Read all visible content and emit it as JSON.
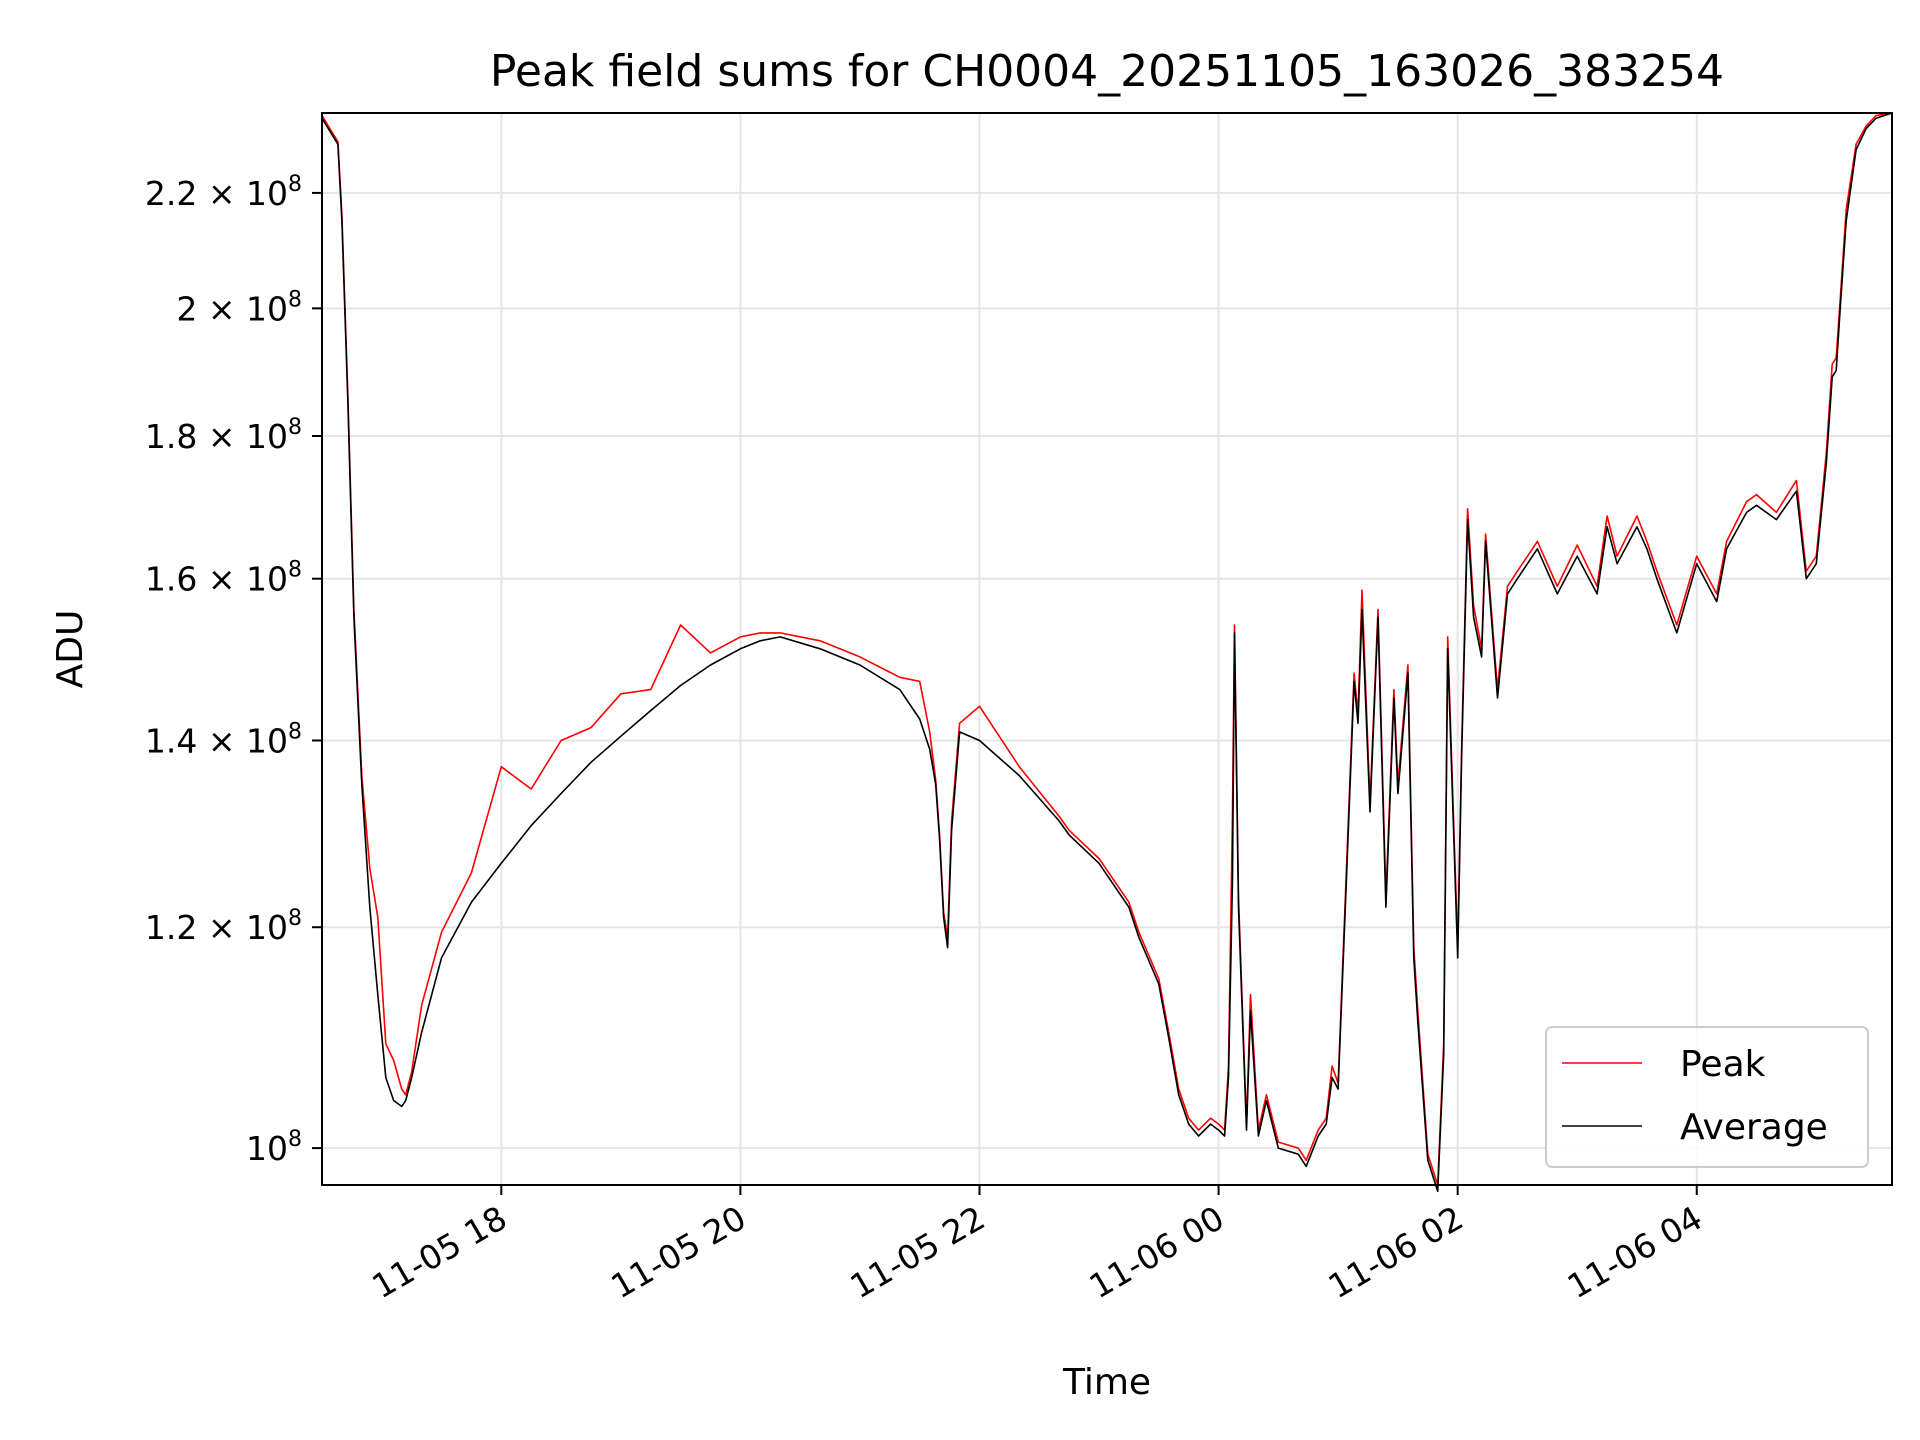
{
  "chart_data": {
    "type": "line",
    "title": "Peak field sums for CH0004_20251105_163026_383254",
    "xlabel": "Time",
    "ylabel": "ADU",
    "y_scale": "log",
    "ylim": [
      97000000,
      235000000
    ],
    "xlim": [
      "2025-11-05 16:30",
      "2025-11-06 05:38"
    ],
    "grid": true,
    "legend_position": "lower-right",
    "x_ticks": [
      {
        "value": "2025-11-05 18:00",
        "label": "11-05 18"
      },
      {
        "value": "2025-11-05 20:00",
        "label": "11-05 20"
      },
      {
        "value": "2025-11-05 22:00",
        "label": "11-05 22"
      },
      {
        "value": "2025-11-06 00:00",
        "label": "11-06 00"
      },
      {
        "value": "2025-11-06 02:00",
        "label": "11-06 02"
      },
      {
        "value": "2025-11-06 04:00",
        "label": "11-06 04"
      }
    ],
    "y_ticks": [
      {
        "value": 100000000,
        "mantissa": "",
        "exp": "8"
      },
      {
        "value": 120000000,
        "mantissa": "1.2",
        "exp": "8"
      },
      {
        "value": 140000000,
        "mantissa": "1.4",
        "exp": "8"
      },
      {
        "value": 160000000,
        "mantissa": "1.6",
        "exp": "8"
      },
      {
        "value": 180000000,
        "mantissa": "1.8",
        "exp": "8"
      },
      {
        "value": 200000000,
        "mantissa": "2",
        "exp": "8"
      },
      {
        "value": 220000000,
        "mantissa": "2.2",
        "exp": "8"
      }
    ],
    "series": [
      {
        "name": "Average",
        "color": "#000000",
        "x": [
          "2025-11-05 16:30",
          "2025-11-05 16:38",
          "2025-11-05 16:40",
          "2025-11-05 16:43",
          "2025-11-05 16:46",
          "2025-11-05 16:50",
          "2025-11-05 16:54",
          "2025-11-05 16:58",
          "2025-11-05 17:02",
          "2025-11-05 17:06",
          "2025-11-05 17:10",
          "2025-11-05 17:12",
          "2025-11-05 17:15",
          "2025-11-05 17:20",
          "2025-11-05 17:30",
          "2025-11-05 17:45",
          "2025-11-05 18:00",
          "2025-11-05 18:15",
          "2025-11-05 18:30",
          "2025-11-05 18:45",
          "2025-11-05 19:00",
          "2025-11-05 19:15",
          "2025-11-05 19:30",
          "2025-11-05 19:45",
          "2025-11-05 20:00",
          "2025-11-05 20:10",
          "2025-11-05 20:20",
          "2025-11-05 20:40",
          "2025-11-05 21:00",
          "2025-11-05 21:20",
          "2025-11-05 21:30",
          "2025-11-05 21:35",
          "2025-11-05 21:38",
          "2025-11-05 21:40",
          "2025-11-05 21:42",
          "2025-11-05 21:44",
          "2025-11-05 21:46",
          "2025-11-05 21:50",
          "2025-11-05 22:00",
          "2025-11-05 22:20",
          "2025-11-05 22:40",
          "2025-11-05 22:45",
          "2025-11-05 23:00",
          "2025-11-05 23:15",
          "2025-11-05 23:20",
          "2025-11-05 23:30",
          "2025-11-05 23:35",
          "2025-11-05 23:40",
          "2025-11-05 23:45",
          "2025-11-05 23:50",
          "2025-11-05 23:56",
          "2025-11-06 00:00",
          "2025-11-06 00:03",
          "2025-11-06 00:05",
          "2025-11-06 00:07",
          "2025-11-06 00:08",
          "2025-11-06 00:10",
          "2025-11-06 00:14",
          "2025-11-06 00:16",
          "2025-11-06 00:20",
          "2025-11-06 00:24",
          "2025-11-06 00:30",
          "2025-11-06 00:40",
          "2025-11-06 00:44",
          "2025-11-06 00:50",
          "2025-11-06 00:54",
          "2025-11-06 00:57",
          "2025-11-06 01:00",
          "2025-11-06 01:04",
          "2025-11-06 01:08",
          "2025-11-06 01:10",
          "2025-11-06 01:12",
          "2025-11-06 01:16",
          "2025-11-06 01:20",
          "2025-11-06 01:24",
          "2025-11-06 01:28",
          "2025-11-06 01:30",
          "2025-11-06 01:35",
          "2025-11-06 01:38",
          "2025-11-06 01:40",
          "2025-11-06 01:45",
          "2025-11-06 01:50",
          "2025-11-06 01:53",
          "2025-11-06 01:55",
          "2025-11-06 02:00",
          "2025-11-06 02:02",
          "2025-11-06 02:05",
          "2025-11-06 02:08",
          "2025-11-06 02:12",
          "2025-11-06 02:14",
          "2025-11-06 02:20",
          "2025-11-06 02:25",
          "2025-11-06 02:30",
          "2025-11-06 02:40",
          "2025-11-06 02:50",
          "2025-11-06 03:00",
          "2025-11-06 03:10",
          "2025-11-06 03:15",
          "2025-11-06 03:20",
          "2025-11-06 03:30",
          "2025-11-06 03:35",
          "2025-11-06 03:40",
          "2025-11-06 03:50",
          "2025-11-06 04:00",
          "2025-11-06 04:10",
          "2025-11-06 04:15",
          "2025-11-06 04:25",
          "2025-11-06 04:30",
          "2025-11-06 04:40",
          "2025-11-06 04:50",
          "2025-11-06 04:55",
          "2025-11-06 05:00",
          "2025-11-06 05:05",
          "2025-11-06 05:08",
          "2025-11-06 05:10",
          "2025-11-06 05:12",
          "2025-11-06 05:15",
          "2025-11-06 05:20",
          "2025-11-06 05:25",
          "2025-11-06 05:30",
          "2025-11-06 05:38"
        ],
        "values": [
          234000000,
          229000000,
          215000000,
          185000000,
          155000000,
          135000000,
          122000000,
          113500000,
          106000000,
          104000000,
          103500000,
          104000000,
          106000000,
          110000000,
          117000000,
          122500000,
          126500000,
          130500000,
          134000000,
          137500000,
          140500000,
          143500000,
          146500000,
          149000000,
          151000000,
          152000000,
          152500000,
          151000000,
          149000000,
          146000000,
          142500000,
          139000000,
          135000000,
          129000000,
          121000000,
          118000000,
          130000000,
          141000000,
          140000000,
          136000000,
          131000000,
          129500000,
          126500000,
          122000000,
          119000000,
          114500000,
          109500000,
          104500000,
          102000000,
          101000000,
          102000000,
          101500000,
          101000000,
          106000000,
          125000000,
          153000000,
          122000000,
          101500000,
          112000000,
          101000000,
          104000000,
          100000000,
          99500000,
          98500000,
          101000000,
          102000000,
          106000000,
          105000000,
          124000000,
          147000000,
          142000000,
          156000000,
          132000000,
          155000000,
          122000000,
          145000000,
          134000000,
          148000000,
          117000000,
          111000000,
          99000000,
          96500000,
          108000000,
          151000000,
          117000000,
          138000000,
          168000000,
          155000000,
          150000000,
          165000000,
          145000000,
          158000000,
          160000000,
          164000000,
          158000000,
          163000000,
          158000000,
          167000000,
          162000000,
          167000000,
          164000000,
          160000000,
          153000000,
          162000000,
          157000000,
          164000000,
          169000000,
          170000000,
          168000000,
          172000000,
          160000000,
          162000000,
          176000000,
          189000000,
          190000000,
          200000000,
          215000000,
          228000000,
          232000000,
          234000000,
          235000000
        ]
      },
      {
        "name": "Peak",
        "color": "#ff0000",
        "x": [
          "2025-11-05 16:30",
          "2025-11-05 16:38",
          "2025-11-05 16:40",
          "2025-11-05 16:43",
          "2025-11-05 16:46",
          "2025-11-05 16:50",
          "2025-11-05 16:54",
          "2025-11-05 16:58",
          "2025-11-05 17:02",
          "2025-11-05 17:06",
          "2025-11-05 17:10",
          "2025-11-05 17:12",
          "2025-11-05 17:15",
          "2025-11-05 17:20",
          "2025-11-05 17:30",
          "2025-11-05 17:45",
          "2025-11-05 18:00",
          "2025-11-05 18:15",
          "2025-11-05 18:30",
          "2025-11-05 18:45",
          "2025-11-05 19:00",
          "2025-11-05 19:15",
          "2025-11-05 19:30",
          "2025-11-05 19:45",
          "2025-11-05 20:00",
          "2025-11-05 20:10",
          "2025-11-05 20:20",
          "2025-11-05 20:40",
          "2025-11-05 21:00",
          "2025-11-05 21:20",
          "2025-11-05 21:30",
          "2025-11-05 21:35",
          "2025-11-05 21:38",
          "2025-11-05 21:40",
          "2025-11-05 21:42",
          "2025-11-05 21:44",
          "2025-11-05 21:46",
          "2025-11-05 21:50",
          "2025-11-05 22:00",
          "2025-11-05 22:20",
          "2025-11-05 22:40",
          "2025-11-05 22:45",
          "2025-11-05 23:00",
          "2025-11-05 23:15",
          "2025-11-05 23:20",
          "2025-11-05 23:30",
          "2025-11-05 23:35",
          "2025-11-05 23:40",
          "2025-11-05 23:45",
          "2025-11-05 23:50",
          "2025-11-05 23:56",
          "2025-11-06 00:00",
          "2025-11-06 00:03",
          "2025-11-06 00:05",
          "2025-11-06 00:07",
          "2025-11-06 00:08",
          "2025-11-06 00:10",
          "2025-11-06 00:14",
          "2025-11-06 00:16",
          "2025-11-06 00:20",
          "2025-11-06 00:24",
          "2025-11-06 00:30",
          "2025-11-06 00:40",
          "2025-11-06 00:44",
          "2025-11-06 00:50",
          "2025-11-06 00:54",
          "2025-11-06 00:57",
          "2025-11-06 01:00",
          "2025-11-06 01:04",
          "2025-11-06 01:08",
          "2025-11-06 01:10",
          "2025-11-06 01:12",
          "2025-11-06 01:16",
          "2025-11-06 01:20",
          "2025-11-06 01:24",
          "2025-11-06 01:28",
          "2025-11-06 01:30",
          "2025-11-06 01:35",
          "2025-11-06 01:38",
          "2025-11-06 01:40",
          "2025-11-06 01:45",
          "2025-11-06 01:50",
          "2025-11-06 01:53",
          "2025-11-06 01:55",
          "2025-11-06 02:00",
          "2025-11-06 02:02",
          "2025-11-06 02:05",
          "2025-11-06 02:08",
          "2025-11-06 02:12",
          "2025-11-06 02:14",
          "2025-11-06 02:20",
          "2025-11-06 02:25",
          "2025-11-06 02:30",
          "2025-11-06 02:40",
          "2025-11-06 02:50",
          "2025-11-06 03:00",
          "2025-11-06 03:10",
          "2025-11-06 03:15",
          "2025-11-06 03:20",
          "2025-11-06 03:30",
          "2025-11-06 03:35",
          "2025-11-06 03:40",
          "2025-11-06 03:50",
          "2025-11-06 04:00",
          "2025-11-06 04:10",
          "2025-11-06 04:15",
          "2025-11-06 04:25",
          "2025-11-06 04:30",
          "2025-11-06 04:40",
          "2025-11-06 04:50",
          "2025-11-06 04:55",
          "2025-11-06 05:00",
          "2025-11-06 05:05",
          "2025-11-06 05:08",
          "2025-11-06 05:10",
          "2025-11-06 05:12",
          "2025-11-06 05:15",
          "2025-11-06 05:20",
          "2025-11-06 05:25",
          "2025-11-06 05:30",
          "2025-11-06 05:38"
        ],
        "values": [
          234500000,
          229500000,
          216000000,
          186000000,
          156000000,
          136000000,
          126000000,
          121000000,
          109000000,
          107500000,
          105000000,
          104500000,
          106500000,
          112500000,
          119500000,
          125500000,
          137000000,
          134500000,
          140000000,
          141500000,
          145500000,
          146000000,
          154000000,
          150500000,
          152500000,
          153000000,
          153000000,
          152000000,
          150000000,
          147500000,
          147000000,
          141000000,
          135500000,
          129500000,
          121500000,
          119000000,
          131000000,
          142000000,
          144000000,
          137000000,
          131500000,
          130000000,
          127000000,
          122500000,
          119500000,
          115000000,
          110000000,
          105000000,
          102500000,
          101500000,
          102500000,
          102000000,
          101500000,
          107000000,
          132000000,
          154000000,
          123000000,
          102000000,
          113500000,
          101500000,
          104500000,
          100500000,
          100000000,
          99000000,
          101500000,
          102500000,
          107000000,
          105500000,
          125000000,
          148000000,
          143000000,
          158500000,
          133000000,
          156000000,
          123000000,
          146000000,
          135000000,
          149000000,
          118000000,
          112000000,
          99500000,
          97000000,
          109000000,
          152500000,
          118000000,
          139000000,
          169500000,
          156500000,
          151000000,
          166000000,
          146000000,
          159000000,
          161000000,
          165000000,
          159000000,
          164500000,
          159000000,
          168500000,
          163000000,
          168500000,
          165000000,
          161000000,
          154000000,
          163000000,
          158000000,
          165000000,
          170500000,
          171500000,
          169000000,
          173500000,
          161000000,
          163000000,
          177500000,
          191000000,
          192000000,
          201500000,
          217000000,
          229000000,
          232500000,
          234500000,
          235000000
        ]
      }
    ]
  }
}
